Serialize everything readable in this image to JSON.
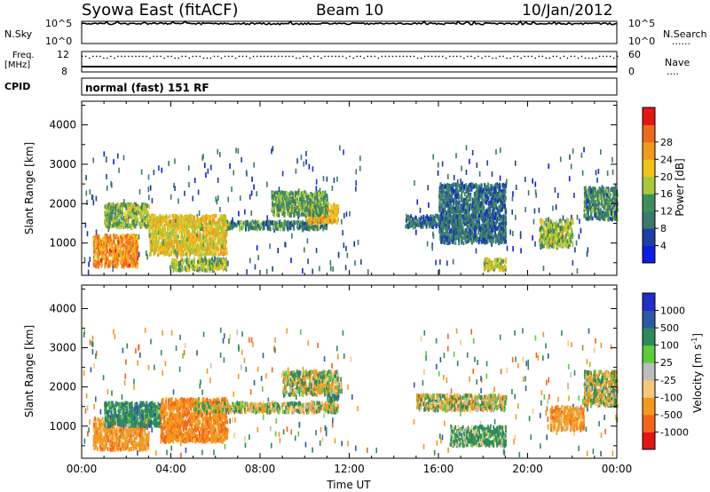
{
  "header": {
    "station": "Syowa East (fitACF)",
    "beam": "Beam 10",
    "date": "10/Jan/2012"
  },
  "nsky_panel": {
    "left_label": "N.Sky",
    "right_label": "N.Search",
    "right_legend_marks": "......",
    "y_top_tick": "10^5",
    "y_bottom_tick": "10^0"
  },
  "freq_panel": {
    "left_label_1": "Freq.",
    "left_label_2": "[MHz]",
    "right_label": "Nave",
    "right_legend_marks": "....",
    "y_left_ticks": [
      "12",
      "8"
    ],
    "y_right_ticks": [
      "60",
      "0"
    ]
  },
  "cpid": {
    "label": "CPID",
    "value": "normal (fast) 151 RF"
  },
  "colors": {
    "power_scale": [
      "#0a1ce6",
      "#1e3fa8",
      "#3a7a6a",
      "#3f8f5c",
      "#a7c93a",
      "#f2c31b",
      "#f39a1c",
      "#ee6a1d",
      "#e41515"
    ],
    "velocity_scale": [
      "#e41515",
      "#f5621c",
      "#f39a1c",
      "#f5c87a",
      "#bdbdbd",
      "#5bcc3a",
      "#2e8a5c",
      "#2c5aa8",
      "#1f2fc8"
    ]
  },
  "chart_data": [
    {
      "type": "heatmap",
      "name": "power",
      "ylabel": "Slant Range [km]",
      "xlabel": "",
      "xlim": [
        "00:00",
        "24:00"
      ],
      "ylim": [
        180,
        4600
      ],
      "y_ticks": [
        1000,
        2000,
        3000,
        4000
      ],
      "colorbar": {
        "label": "Power [dB]",
        "ticks": [
          4,
          8,
          12,
          16,
          20,
          24,
          28
        ],
        "range": [
          0,
          30
        ]
      },
      "regions": [
        {
          "t": [
            0.5,
            2.5
          ],
          "r": [
            400,
            1200
          ],
          "value": 22
        },
        {
          "t": [
            1.0,
            3.0
          ],
          "r": [
            1400,
            2000
          ],
          "value": 14
        },
        {
          "t": [
            3.0,
            6.5
          ],
          "r": [
            700,
            1700
          ],
          "value": 18
        },
        {
          "t": [
            4.0,
            6.5
          ],
          "r": [
            300,
            600
          ],
          "value": 14
        },
        {
          "t": [
            6.5,
            11.0
          ],
          "r": [
            1350,
            1550
          ],
          "value": 10
        },
        {
          "t": [
            10.0,
            11.5
          ],
          "r": [
            1500,
            2000
          ],
          "value": 20
        },
        {
          "t": [
            8.5,
            11.0
          ],
          "r": [
            1700,
            2300
          ],
          "value": 12
        },
        {
          "t": [
            14.5,
            17.0
          ],
          "r": [
            1400,
            1700
          ],
          "value": 8
        },
        {
          "t": [
            16.0,
            19.0
          ],
          "r": [
            1000,
            2500
          ],
          "value": 8
        },
        {
          "t": [
            18.0,
            19.0
          ],
          "r": [
            300,
            600
          ],
          "value": 16
        },
        {
          "t": [
            20.5,
            22.0
          ],
          "r": [
            900,
            1600
          ],
          "value": 14
        },
        {
          "t": [
            22.5,
            24.0
          ],
          "r": [
            1600,
            2400
          ],
          "value": 10
        }
      ]
    },
    {
      "type": "heatmap",
      "name": "velocity",
      "ylabel": "Slant Range [km]",
      "xlabel": "Time UT",
      "xlim": [
        "00:00",
        "24:00"
      ],
      "ylim": [
        180,
        4600
      ],
      "x_ticks": [
        "00:00",
        "04:00",
        "08:00",
        "12:00",
        "16:00",
        "20:00",
        "00:00"
      ],
      "y_ticks": [
        1000,
        2000,
        3000,
        4000
      ],
      "colorbar": {
        "label": "Velocity [m s-1]",
        "label_main": "Velocity  [m s",
        "label_sup": "-1",
        "label_close": "]",
        "ticks": [
          -1000,
          -500,
          -100,
          -25,
          25,
          100,
          500,
          1000
        ],
        "tick_labels": [
          "-1000",
          "-500",
          "-100",
          "-25",
          "25",
          "100",
          "500",
          "1000"
        ]
      },
      "regions": [
        {
          "t": [
            0.5,
            3.0
          ],
          "r": [
            400,
            1200
          ],
          "value": -300
        },
        {
          "t": [
            1.0,
            3.5
          ],
          "r": [
            1000,
            1600
          ],
          "value": 300
        },
        {
          "t": [
            3.5,
            6.5
          ],
          "r": [
            600,
            1700
          ],
          "value": -400
        },
        {
          "t": [
            5.0,
            11.5
          ],
          "r": [
            1350,
            1600
          ],
          "value": 0
        },
        {
          "t": [
            9.0,
            11.5
          ],
          "r": [
            1800,
            2400
          ],
          "value": 0
        },
        {
          "t": [
            11.0,
            11.5
          ],
          "r": [
            1600,
            1800
          ],
          "value": 300
        },
        {
          "t": [
            15.0,
            19.0
          ],
          "r": [
            1400,
            1800
          ],
          "value": 0
        },
        {
          "t": [
            16.5,
            19.0
          ],
          "r": [
            500,
            1000
          ],
          "value": 200
        },
        {
          "t": [
            21.0,
            22.5
          ],
          "r": [
            900,
            1500
          ],
          "value": -300
        },
        {
          "t": [
            22.5,
            24.0
          ],
          "r": [
            1500,
            2400
          ],
          "value": 0
        }
      ]
    },
    {
      "type": "line",
      "name": "noise_sky",
      "ylim": [
        1,
        100000
      ],
      "yscale": "log",
      "level": 30000
    },
    {
      "type": "line",
      "name": "frequency_nave",
      "ylim": [
        8,
        12
      ],
      "freq_level_mhz": 11.0,
      "nave_level": 40
    }
  ]
}
